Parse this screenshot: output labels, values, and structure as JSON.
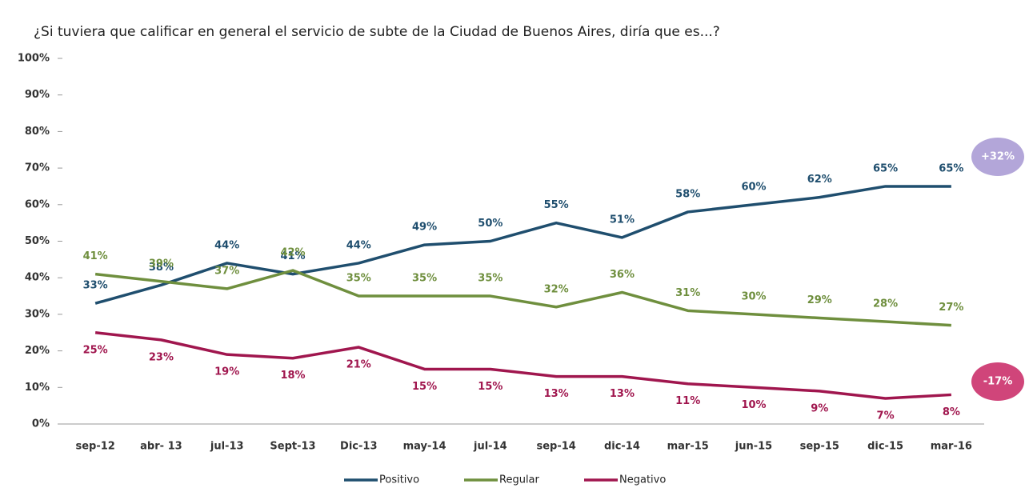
{
  "chart_data": {
    "type": "line",
    "title": "¿Si tuviera que calificar en general el servicio de subte de la Ciudad de Buenos Aires, diría que es...?",
    "categories": [
      "sep-12",
      "abr- 13",
      "jul-13",
      "Sept-13",
      "Dic-13",
      "may-14",
      "jul-14",
      "sep-14",
      "dic-14",
      "mar-15",
      "jun-15",
      "sep-15",
      "dic-15",
      "mar-16"
    ],
    "series": [
      {
        "name": "Positivo",
        "color": "#1f4e6e",
        "values": [
          33,
          38,
          44,
          41,
          44,
          49,
          50,
          55,
          51,
          58,
          60,
          62,
          65,
          65
        ],
        "value_labels": [
          "33%",
          "38%",
          "44%",
          "41%",
          "44%",
          "49%",
          "50%",
          "55%",
          "51%",
          "58%",
          "60%",
          "62%",
          "65%",
          "65%"
        ]
      },
      {
        "name": "Regular",
        "color": "#6f8f3e",
        "values": [
          41,
          39,
          37,
          42,
          35,
          35,
          35,
          32,
          36,
          31,
          30,
          29,
          28,
          27
        ],
        "value_labels": [
          "41%",
          "39%",
          "37%",
          "42%",
          "35%",
          "35%",
          "35%",
          "32%",
          "36%",
          "31%",
          "30%",
          "29%",
          "28%",
          "27%"
        ]
      },
      {
        "name": "Negativo",
        "color": "#a0164e",
        "values": [
          25,
          23,
          19,
          18,
          21,
          15,
          15,
          13,
          13,
          11,
          10,
          9,
          7,
          8
        ],
        "value_labels": [
          "25%",
          "23%",
          "19%",
          "18%",
          "21%",
          "15%",
          "15%",
          "13%",
          "13%",
          "11%",
          "10%",
          "9%",
          "7%",
          "8%"
        ]
      }
    ],
    "ylim": [
      0,
      100
    ],
    "yticks": [
      {
        "value": 0,
        "label": "0%"
      },
      {
        "value": 10,
        "label": "10%"
      },
      {
        "value": 20,
        "label": "20%"
      },
      {
        "value": 30,
        "label": "30%"
      },
      {
        "value": 40,
        "label": "40%"
      },
      {
        "value": 50,
        "label": "50%"
      },
      {
        "value": 60,
        "label": "60%"
      },
      {
        "value": 70,
        "label": "70%"
      },
      {
        "value": 80,
        "label": "80%"
      },
      {
        "value": 90,
        "label": "90%"
      },
      {
        "value": 100,
        "label": "100%"
      }
    ],
    "legend": "bottom",
    "annotations": [
      {
        "text": "+32%",
        "color": "#b3a6d9"
      },
      {
        "text": "-17%",
        "color": "#d0457a"
      }
    ]
  }
}
